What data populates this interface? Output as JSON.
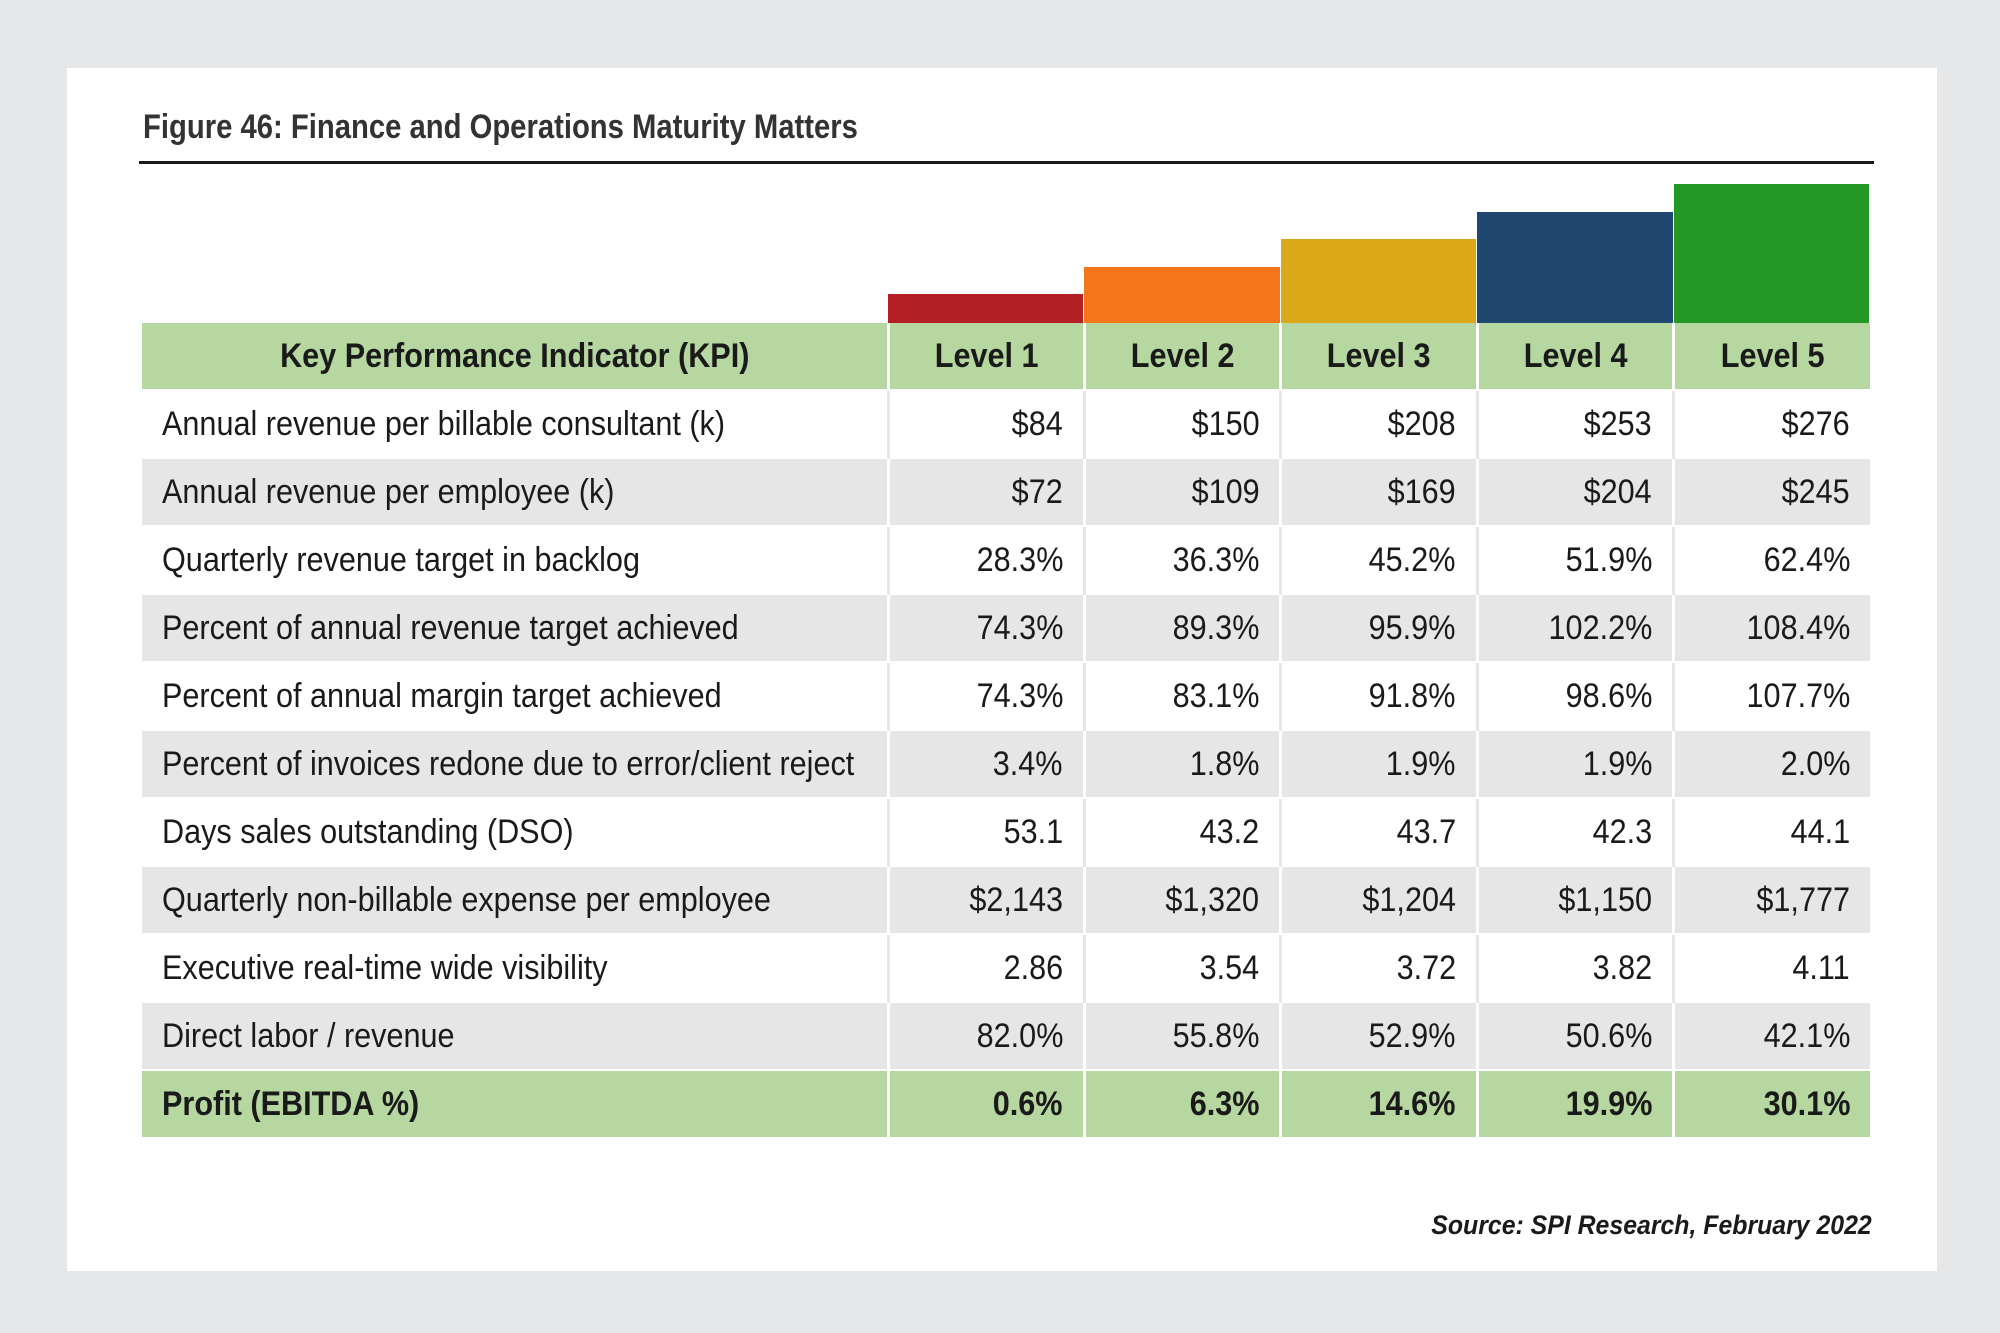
{
  "figure": {
    "title": "Figure 46:  Finance and Operations Maturity Matters",
    "source": "Source: SPI Research, February 2022"
  },
  "level_colors": [
    "#b31f24",
    "#f5761a",
    "#dba81a",
    "#1f4770",
    "#249824"
  ],
  "table": {
    "header": {
      "kpi": "Key Performance Indicator (KPI)",
      "levels": [
        "Level 1",
        "Level 2",
        "Level 3",
        "Level 4",
        "Level 5"
      ]
    },
    "rows": [
      {
        "kpi": "Annual revenue per billable consultant (k)",
        "values": [
          "$84",
          "$150",
          "$208",
          "$253",
          "$276"
        ]
      },
      {
        "kpi": "Annual revenue per employee (k)",
        "values": [
          "$72",
          "$109",
          "$169",
          "$204",
          "$245"
        ]
      },
      {
        "kpi": "Quarterly revenue target in backlog",
        "values": [
          "28.3%",
          "36.3%",
          "45.2%",
          "51.9%",
          "62.4%"
        ]
      },
      {
        "kpi": "Percent of annual revenue target achieved",
        "values": [
          "74.3%",
          "89.3%",
          "95.9%",
          "102.2%",
          "108.4%"
        ]
      },
      {
        "kpi": "Percent of annual margin target achieved",
        "values": [
          "74.3%",
          "83.1%",
          "91.8%",
          "98.6%",
          "107.7%"
        ]
      },
      {
        "kpi": "Percent of invoices redone due to error/client reject",
        "values": [
          "3.4%",
          "1.8%",
          "1.9%",
          "1.9%",
          "2.0%"
        ]
      },
      {
        "kpi": "Days sales outstanding (DSO)",
        "values": [
          "53.1",
          "43.2",
          "43.7",
          "42.3",
          "44.1"
        ]
      },
      {
        "kpi": "Quarterly non-billable expense per employee",
        "values": [
          "$2,143",
          "$1,320",
          "$1,204",
          "$1,150",
          "$1,777"
        ]
      },
      {
        "kpi": "Executive real-time wide visibility",
        "values": [
          "2.86",
          "3.54",
          "3.72",
          "3.82",
          "4.11"
        ]
      },
      {
        "kpi": "Direct labor / revenue",
        "values": [
          "82.0%",
          "55.8%",
          "52.9%",
          "50.6%",
          "42.1%"
        ]
      }
    ],
    "footer": {
      "kpi": "Profit (EBITDA %)",
      "values": [
        "0.6%",
        "6.3%",
        "14.6%",
        "19.9%",
        "30.1%"
      ]
    }
  }
}
